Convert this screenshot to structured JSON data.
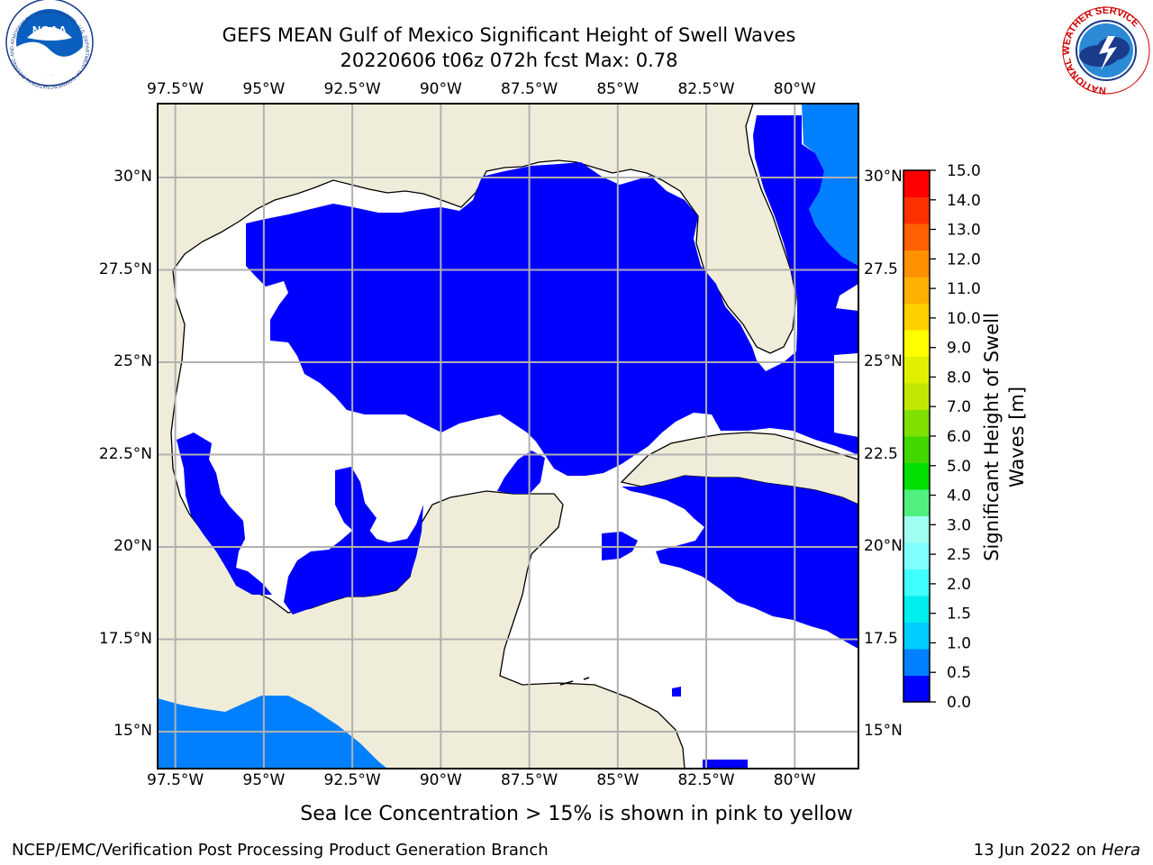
{
  "header": {
    "title_line1": "GEFS MEAN Gulf of Mexico Significant Height of Swell Waves",
    "title_line2": "20220606 t06z 072h fcst   Max: 0.78"
  },
  "logos": {
    "left": "NOAA",
    "left_ring_text": "NATIONAL OCEANIC AND ATMOSPHERIC ADMINISTRATION · U.S. DEPARTMENT OF COMMERCE",
    "right_ring_text": "NATIONAL WEATHER SERVICE"
  },
  "caption": "Sea Ice Concentration > 15% is shown in pink to yellow",
  "footer": {
    "left": "NCEP/EMC/Verification Post Processing Product Generation Branch",
    "right_date": "13 Jun 2022 on",
    "right_machine": "Hera"
  },
  "colors": {
    "land": "#efedd9",
    "grid": "#b0b0b0",
    "sea_white": "#ffffff"
  },
  "chart_data": {
    "type": "heatmap",
    "title": "GEFS MEAN Gulf of Mexico Significant Height of Swell Waves",
    "subtitle": "20220606 t06z 072h fcst   Max: 0.78",
    "lon_ticks": [
      "97.5°W",
      "95°W",
      "92.5°W",
      "90°W",
      "87.5°W",
      "85°W",
      "82.5°W",
      "80°W"
    ],
    "lon_values": [
      -97.5,
      -95,
      -92.5,
      -90,
      -87.5,
      -85,
      -82.5,
      -80
    ],
    "lat_ticks_left": [
      "30°N",
      "27.5°N",
      "25°N",
      "22.5°N",
      "20°N",
      "17.5°N",
      "15°N"
    ],
    "lat_ticks_right": [
      "30°N",
      "27.5",
      "25°N",
      "22.5",
      "20°N",
      "17.5",
      "15°N"
    ],
    "lat_values": [
      30,
      27.5,
      25,
      22.5,
      20,
      17.5,
      15
    ],
    "xlim": [
      -98,
      -78.2
    ],
    "ylim": [
      14,
      32
    ],
    "grid": true,
    "max_value": 0.78,
    "colorbar": {
      "label": "Significant Height of Swell Waves [m]",
      "ticks": [
        "0.0",
        "0.5",
        "1.0",
        "1.5",
        "2.0",
        "2.5",
        "3.0",
        "4.0",
        "5.0",
        "6.0",
        "7.0",
        "8.0",
        "9.0",
        "10.0",
        "11.0",
        "12.0",
        "13.0",
        "14.0",
        "15.0"
      ],
      "colors": [
        "#0000ff",
        "#0080ff",
        "#00ccff",
        "#00eeee",
        "#40ffff",
        "#80ffff",
        "#a0fff0",
        "#50f080",
        "#00e000",
        "#40d800",
        "#80e000",
        "#c0e800",
        "#e0f000",
        "#ffff00",
        "#ffd000",
        "#ffb000",
        "#ff9000",
        "#ff6000",
        "#ff3000",
        "#ff0000"
      ]
    },
    "legend": "right"
  }
}
